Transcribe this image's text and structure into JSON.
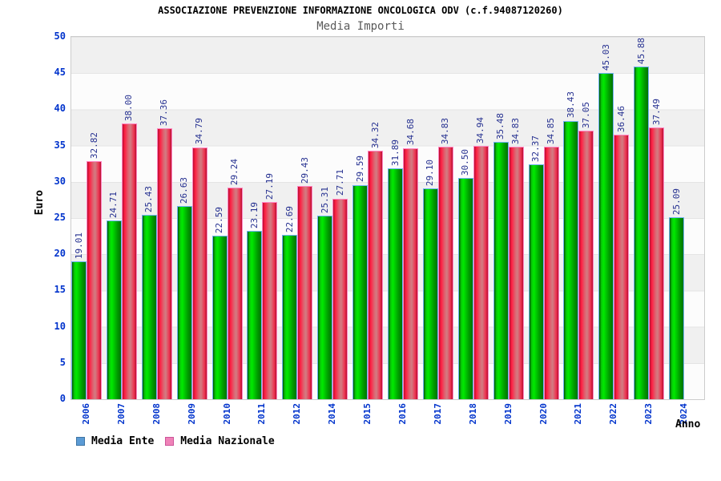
{
  "header": {
    "title": "ASSOCIAZIONE PREVENZIONE INFORMAZIONE ONCOLOGICA ODV (c.f.94087120260)",
    "subtitle": "Media Importi"
  },
  "axes": {
    "y_label": "Euro",
    "x_label": "Anno",
    "y_ticks": [
      0,
      5,
      10,
      15,
      20,
      25,
      30,
      35,
      40,
      45,
      50
    ]
  },
  "legend": {
    "items": [
      {
        "label": "Media Ente",
        "swatch_color": "#5b9bd5"
      },
      {
        "label": "Media Nazionale",
        "swatch_color": "#ef82b8"
      }
    ]
  },
  "colors": {
    "bar_ente": "#00c400",
    "bar_ente_border": "#6fb3f2",
    "bar_nazionale": "#ee3350",
    "bar_nazionale_border": "#ff85c2",
    "tick_text": "#0033cc",
    "value_label_text": "#253090",
    "band_gray": "#f0f0f0",
    "band_white": "#fcfcfc"
  },
  "chart_data": {
    "type": "bar",
    "title": "ASSOCIAZIONE PREVENZIONE INFORMAZIONE ONCOLOGICA ODV (c.f.94087120260)",
    "subtitle": "Media Importi",
    "xlabel": "Anno",
    "ylabel": "Euro",
    "ylim": [
      0,
      50
    ],
    "grid": true,
    "legend_position": "bottom",
    "value_labels": true,
    "categories": [
      "2006",
      "2007",
      "2008",
      "2009",
      "2010",
      "2011",
      "2012",
      "2014",
      "2015",
      "2016",
      "2017",
      "2018",
      "2019",
      "2020",
      "2021",
      "2022",
      "2023",
      "2024"
    ],
    "series": [
      {
        "name": "Media Ente",
        "values": [
          19.01,
          24.71,
          25.43,
          26.63,
          22.59,
          23.19,
          22.69,
          25.31,
          29.59,
          31.89,
          29.1,
          30.5,
          35.48,
          32.37,
          38.43,
          45.03,
          45.88,
          25.09
        ]
      },
      {
        "name": "Media Nazionale",
        "values": [
          32.82,
          38.0,
          37.36,
          34.79,
          29.24,
          27.19,
          29.43,
          27.71,
          34.32,
          34.68,
          34.83,
          34.94,
          34.83,
          34.85,
          37.05,
          36.46,
          37.49,
          null
        ]
      }
    ]
  }
}
